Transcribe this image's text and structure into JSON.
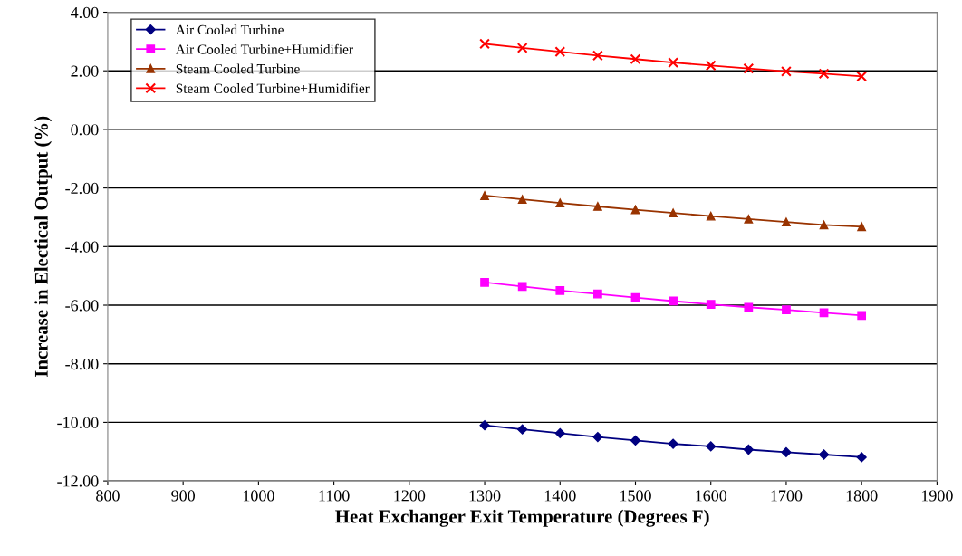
{
  "chart_data": {
    "type": "line",
    "xlabel": "Heat Exchanger Exit Temperature (Degrees F)",
    "ylabel": "Increase in Electical Output (%)",
    "x": [
      1300,
      1350,
      1400,
      1450,
      1500,
      1550,
      1600,
      1650,
      1700,
      1750,
      1800
    ],
    "series": [
      {
        "name": "Air Cooled Turbine",
        "color": "#000080",
        "marker": "diamond",
        "values": [
          -10.1,
          -10.24,
          -10.37,
          -10.5,
          -10.62,
          -10.73,
          -10.82,
          -10.93,
          -11.02,
          -11.1,
          -11.19
        ]
      },
      {
        "name": "Air Cooled Turbine+Humidifier",
        "color": "#ff00ff",
        "marker": "square",
        "values": [
          -5.22,
          -5.36,
          -5.5,
          -5.62,
          -5.74,
          -5.86,
          -5.97,
          -6.07,
          -6.16,
          -6.26,
          -6.35
        ]
      },
      {
        "name": "Steam Cooled Turbine",
        "color": "#993300",
        "marker": "triangle",
        "values": [
          -2.26,
          -2.39,
          -2.51,
          -2.63,
          -2.74,
          -2.85,
          -2.96,
          -3.06,
          -3.16,
          -3.26,
          -3.32
        ]
      },
      {
        "name": "Steam Cooled Turbine+Humidifier",
        "color": "#ff0000",
        "marker": "cross",
        "values": [
          2.92,
          2.78,
          2.65,
          2.52,
          2.4,
          2.28,
          2.18,
          2.08,
          1.98,
          1.9,
          1.81
        ]
      }
    ],
    "xlim": [
      800,
      1900
    ],
    "xticks": [
      800,
      900,
      1000,
      1100,
      1200,
      1300,
      1400,
      1500,
      1600,
      1700,
      1800,
      1900
    ],
    "ylim": [
      -12,
      4
    ],
    "yticks": [
      {
        "value": -12,
        "label": "-12.00"
      },
      {
        "value": -10,
        "label": "-10.00"
      },
      {
        "value": -8,
        "label": "-8.00"
      },
      {
        "value": -6,
        "label": "-6.00"
      },
      {
        "value": -4,
        "label": "-4.00"
      },
      {
        "value": -2,
        "label": "-2.00"
      },
      {
        "value": 0,
        "label": "0.00"
      },
      {
        "value": 2,
        "label": "2.00"
      },
      {
        "value": 4,
        "label": "4.00"
      }
    ],
    "grid": "y",
    "legend": "top left",
    "line_style": "solid"
  }
}
